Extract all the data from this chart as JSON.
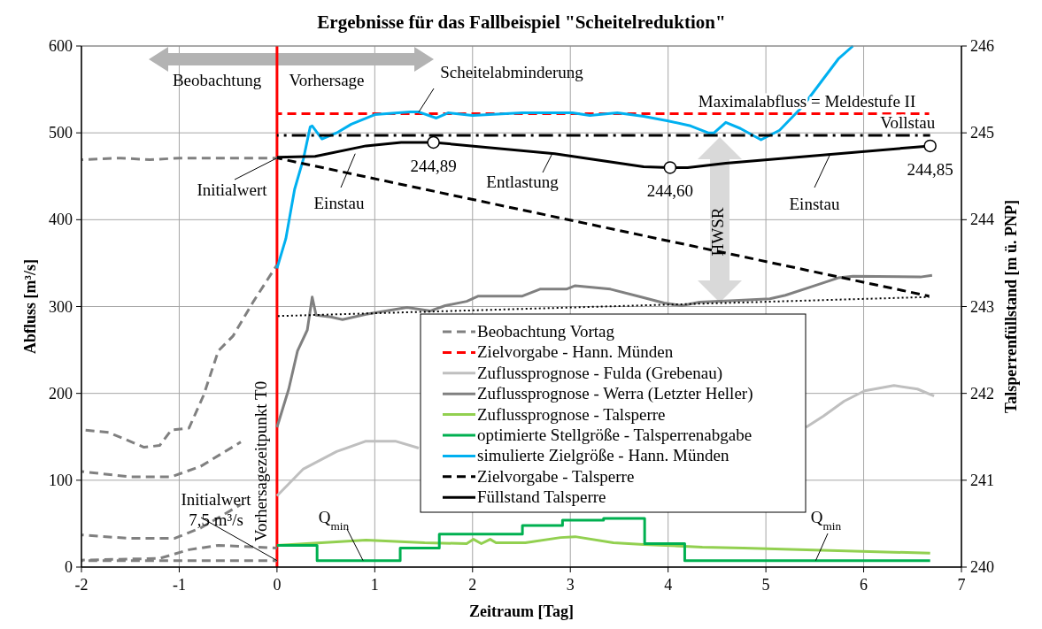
{
  "chart_data": {
    "type": "line",
    "title": "Ergebnisse für das Fallbeispiel \"Scheitelreduktion\"",
    "xlabel": "Zeitraum [Tag]",
    "ylabel": "Abfluss [m³/s]",
    "y2label": "Talsperrenfüllstand [m ü. PNP]",
    "xlim": [
      -2,
      7
    ],
    "xticks": [
      -2,
      -1,
      0,
      1,
      2,
      3,
      4,
      5,
      6,
      7
    ],
    "ylim": [
      0,
      600
    ],
    "yticks": [
      0,
      100,
      200,
      300,
      400,
      500,
      600
    ],
    "y2lim": [
      240,
      246
    ],
    "y2ticks": [
      240,
      241,
      242,
      243,
      244,
      245,
      246
    ],
    "grid": true,
    "legend": "bottom",
    "series": [
      {
        "name": "Beobachtung Vortag",
        "color": "#808080",
        "line_style": "dashed",
        "x": [
          -2,
          -1.72,
          -1.36,
          -1.2,
          -1.08,
          -0.9,
          -0.75,
          -0.6,
          -0.45,
          -0.24,
          0
        ],
        "values": [
          158,
          155,
          138,
          140,
          158,
          160,
          198,
          249,
          266,
          306,
          348
        ]
      },
      {
        "name": "Zielvorgabe - Hann. Münden",
        "color": "#ff0000",
        "line_style": "dashed",
        "x": [
          0,
          6.67
        ],
        "values": [
          522,
          522
        ]
      },
      {
        "name": "Zuflussprognose - Fulda (Grebenau)",
        "color": "#bfbfbf",
        "x": [
          0,
          0.27,
          0.61,
          0.91,
          1.21,
          1.45,
          3.0,
          5.41,
          5.59,
          5.8,
          6.01,
          6.31,
          6.55,
          6.72
        ],
        "values": [
          82,
          113,
          133,
          145,
          145,
          137,
          null,
          161,
          174,
          191,
          203,
          209,
          205,
          197
        ]
      },
      {
        "name": "Zuflussprognose - Werra (Letzter Heller)",
        "color": "#808080",
        "x": [
          0,
          0.12,
          0.21,
          0.31,
          0.36,
          0.4,
          0.55,
          0.67,
          0.91,
          1.33,
          1.57,
          1.72,
          1.94,
          2.06,
          2.51,
          2.69,
          2.96,
          3.05,
          3.41,
          3.69,
          3.96,
          4.14,
          4.32,
          4.68,
          5.04,
          5.2,
          5.5,
          5.74,
          5.89,
          6.58,
          6.7
        ],
        "values": [
          161,
          205,
          249,
          273,
          311,
          290,
          288,
          285,
          291,
          299,
          295,
          301,
          306,
          312,
          312,
          320,
          320,
          324,
          320,
          312,
          304,
          301,
          305,
          307,
          309,
          313,
          324,
          333,
          335,
          334,
          336
        ]
      },
      {
        "name": "Zuflussprognose - Talsperre",
        "color": "#92d050",
        "x": [
          0,
          0.91,
          1.51,
          1.94,
          2.01,
          2.09,
          2.18,
          2.24,
          2.54,
          2.9,
          3.05,
          3.44,
          3.75,
          4.35,
          4.77,
          6.68
        ],
        "values": [
          25,
          31,
          28,
          27,
          32,
          27,
          32,
          28,
          28,
          34,
          35,
          28,
          26,
          23,
          22,
          16
        ]
      },
      {
        "name": "optimierte Stellgröße - Talsperrenabgabe",
        "color": "#00b050",
        "type": "step",
        "x": [
          0,
          0.41,
          1.26,
          1.66,
          2.51,
          2.92,
          3.34,
          3.76,
          4.17,
          6.68
        ],
        "values": [
          25,
          7.5,
          22,
          38,
          48,
          54,
          56,
          27,
          7.5,
          7.5
        ]
      },
      {
        "name": "simulierte Zielgröße - Hann. Münden",
        "color": "#00b0f0",
        "x": [
          0,
          0.09,
          0.18,
          0.27,
          0.34,
          0.36,
          0.46,
          0.61,
          0.76,
          1.0,
          1.36,
          1.45,
          1.63,
          1.75,
          2.0,
          2.51,
          3.02,
          3.2,
          3.48,
          3.75,
          3.99,
          4.23,
          4.41,
          4.47,
          4.59,
          4.74,
          4.95,
          5.14,
          5.38,
          5.56,
          5.74,
          5.89
        ],
        "values": [
          344,
          378,
          435,
          470,
          507,
          508,
          493,
          500,
          510,
          521,
          524,
          524,
          517,
          523,
          520,
          523,
          523,
          520,
          523,
          519,
          514,
          508,
          500,
          500,
          512,
          505,
          492,
          503,
          531,
          558,
          585,
          600
        ]
      },
      {
        "name": "Zielvorgabe - Talsperre",
        "color": "#000000",
        "line_style": "dashed",
        "axis": "y2",
        "x": [
          0,
          6.67
        ],
        "values": [
          244.71,
          243.12
        ]
      },
      {
        "name": "Füllstand Talsperre",
        "color": "#000000",
        "axis": "y2",
        "x": [
          0,
          0.39,
          0.91,
          1.27,
          1.6,
          2.84,
          3.75,
          4.02,
          4.2,
          4.59,
          6.68
        ],
        "values": [
          244.72,
          244.73,
          244.85,
          244.89,
          244.89,
          244.76,
          244.61,
          244.6,
          244.6,
          244.65,
          244.85
        ]
      },
      {
        "color": "#808080",
        "line_style": "dashed",
        "axis": "y2",
        "x": [
          -2,
          -1.6,
          -1.3,
          -1,
          0
        ],
        "values": [
          244.69,
          244.71,
          244.69,
          244.71,
          244.71
        ]
      },
      {
        "color": "#808080",
        "line_style": "dashed",
        "x": [
          -2,
          -1.51,
          -1.08,
          -0.78,
          -0.37
        ],
        "values": [
          110,
          104,
          104,
          116,
          144
        ]
      },
      {
        "color": "#808080",
        "line_style": "dashed",
        "x": [
          -2,
          -1.51,
          -1.05,
          -0.78,
          -0.37
        ],
        "values": [
          37,
          33,
          33,
          45,
          72
        ]
      },
      {
        "color": "#808080",
        "line_style": "dashed",
        "x": [
          -2,
          -1.2,
          -0.9,
          -0.6,
          0
        ],
        "values": [
          8,
          10,
          20,
          25,
          22
        ]
      },
      {
        "color": "#808080",
        "line_style": "dashed",
        "x": [
          -2,
          0
        ],
        "values": [
          7.5,
          7.5
        ]
      },
      {
        "color": "#000000",
        "line_style": "dashdot",
        "axis": "y2",
        "x": [
          0,
          6.68
        ],
        "values": [
          244.97,
          244.97
        ]
      },
      {
        "color": "#000000",
        "line_style": "dotted",
        "x": [
          0,
          6.67
        ],
        "values": [
          289,
          311
        ]
      },
      {
        "color": "#ffffff",
        "type": "scatter",
        "marker": "circle",
        "axis": "y2",
        "x": [
          1.6,
          4.02,
          6.68
        ],
        "values": [
          244.89,
          244.6,
          244.85
        ],
        "value_labels": [
          "244,89",
          "244,60",
          "244,85"
        ]
      }
    ],
    "ref_lines": [
      {
        "axis": "x",
        "value": 0,
        "label": "Vorhersagezeitpunkt T0",
        "color": "#ff0000"
      }
    ],
    "annotations": [
      "Beobachtung",
      "Vorhersage",
      {
        "text": "Scheitelabminderung",
        "x": 1.45,
        "y": 524
      },
      {
        "text": "Maximalabfluss = Meldestufe II",
        "x": 5.42,
        "y": 522
      },
      {
        "text": "Vollstau",
        "x": 6.45,
        "y": 497
      },
      {
        "text": "Initialwert",
        "x": 0,
        "y": 471
      },
      {
        "text": "Einstau",
        "x": 0.8,
        "y": 476
      },
      {
        "text": "Entlastung",
        "x": 2.81,
        "y": 475
      },
      {
        "text": "Einstau",
        "x": 5.66,
        "y": 476
      },
      "HWSR",
      {
        "text": "Initialwert\n7,5 m³/s",
        "x": 0,
        "y": 7.5
      },
      {
        "text": "Q$_{min}$",
        "x": 0.88,
        "y": 7.5
      },
      {
        "text": "Q$_{min}$",
        "x": 5.51,
        "y": 7.5
      }
    ]
  }
}
